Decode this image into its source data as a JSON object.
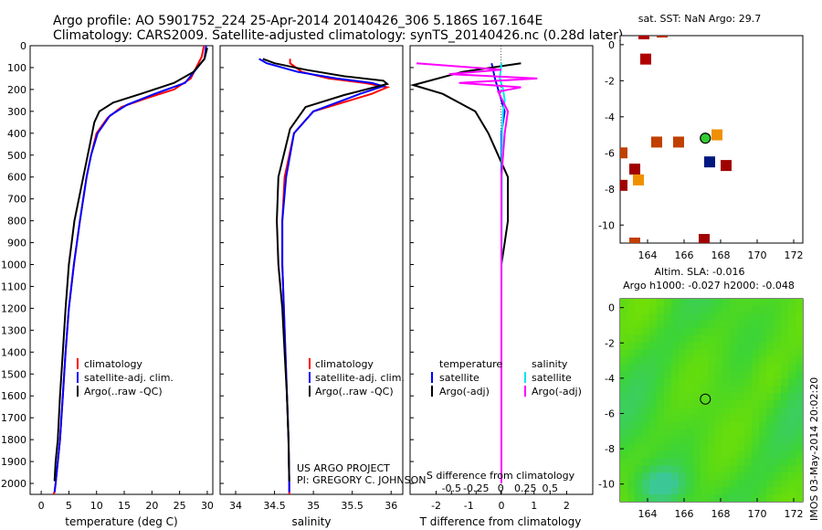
{
  "header": {
    "line1": "Argo profile: AO 5901752_224 25-Apr-2014 20140426_306 5.186S 167.164E",
    "line2": "Climatology: CARS2009. Satellite-adjusted climatology: synTS_20140426.nc (0.28d later)"
  },
  "depth_ticks": [
    "0",
    "100",
    "200",
    "300",
    "400",
    "500",
    "600",
    "700",
    "800",
    "900",
    "1000",
    "1100",
    "1200",
    "1300",
    "1400",
    "1500",
    "1600",
    "1700",
    "1800",
    "1900",
    "2000"
  ],
  "colors": {
    "climatology": "#ff0000",
    "satellite": "#0000ff",
    "argo": "#000000",
    "sat_sal": "#00e5ee",
    "argo_sal": "#ff00ff",
    "sea": "#33cc33"
  },
  "panels": {
    "temperature": {
      "xlabel": "temperature (deg C)",
      "xticks": [
        "0",
        "5",
        "10",
        "15",
        "20",
        "25",
        "30"
      ],
      "legend": [
        "climatology",
        "satellite-adj. clim.",
        "Argo(..raw -QC)"
      ]
    },
    "salinity": {
      "xlabel": "salinity",
      "xticks": [
        "34",
        "34.5",
        "35",
        "35.5",
        "36"
      ],
      "legend": [
        "climatology",
        "satellite-adj. clim.",
        "Argo(..raw -QC)"
      ],
      "credit1": "US ARGO PROJECT",
      "credit2": "PI: GREGORY C. JOHNSON"
    },
    "difference": {
      "xlabel": "T difference from climatology",
      "top_label": "S difference from climatology",
      "xticks": [
        "-2",
        "-1",
        "0",
        "1",
        "2"
      ],
      "top_ticks": [
        "-0.5",
        "-0.25",
        "0",
        "0.25",
        "0.5"
      ],
      "legend_t_head": "temperature",
      "legend_s_head": "salinity",
      "legend_t": [
        "satellite",
        "Argo(-adj)"
      ],
      "legend_s": [
        "satellite",
        "Argo(-adj)"
      ]
    },
    "sst_map": {
      "title": "sat. SST: NaN Argo: 29.7",
      "xticks": [
        "164",
        "166",
        "168",
        "170",
        "172"
      ],
      "yticks": [
        "0",
        "-2",
        "-4",
        "-6",
        "-8",
        "-10"
      ]
    },
    "sla_map": {
      "title1": "Altim. SLA: -0.016",
      "title2": "Argo h1000: -0.027 h2000: -0.048",
      "xticks": [
        "164",
        "166",
        "168",
        "170",
        "172"
      ],
      "yticks": [
        "0",
        "-2",
        "-4",
        "-6",
        "-8",
        "-10"
      ]
    },
    "timestamp": "IMOS 03-May-2014 20:02:20"
  },
  "chart_data": [
    {
      "type": "line",
      "xlabel": "temperature (deg C)",
      "xlim": [
        -2,
        31
      ],
      "ylim": [
        2050,
        0
      ],
      "series": [
        {
          "name": "climatology",
          "color": "#ff0000",
          "x": [
            29.4,
            29.0,
            27.0,
            24.0,
            19.0,
            14.5,
            12.0,
            10.0,
            9.0,
            8.2,
            7.0,
            5.9,
            5.0,
            4.4,
            3.9,
            3.4,
            3.0,
            2.6,
            2.4,
            2.2
          ],
          "y": [
            0,
            50,
            150,
            200,
            240,
            280,
            330,
            400,
            500,
            600,
            800,
            1000,
            1200,
            1400,
            1600,
            1800,
            1900,
            2000,
            2040,
            2050
          ]
        },
        {
          "name": "satellite-adj. clim.",
          "color": "#0000ff",
          "x": [
            29.8,
            29.5,
            26.0,
            20.5,
            15.5,
            12.4,
            10.2,
            9.0,
            8.2,
            7.0,
            5.9,
            5.0,
            4.4,
            3.9,
            3.4,
            3.0,
            2.6,
            2.4
          ],
          "y": [
            0,
            60,
            170,
            220,
            270,
            320,
            400,
            500,
            600,
            800,
            1000,
            1200,
            1400,
            1600,
            1800,
            1900,
            2000,
            2040
          ]
        },
        {
          "name": "Argo(..raw -QC)",
          "color": "#000000",
          "x": [
            30.0,
            29.5,
            27.5,
            24.0,
            18.0,
            13.0,
            10.5,
            9.6,
            8.8,
            7.6,
            6.0,
            5.0,
            4.4,
            3.9,
            3.4,
            3.0,
            2.6,
            2.4
          ],
          "y": [
            10,
            60,
            120,
            170,
            220,
            260,
            300,
            350,
            450,
            600,
            800,
            1000,
            1200,
            1400,
            1600,
            1800,
            1900,
            1990
          ]
        }
      ]
    },
    {
      "type": "line",
      "xlabel": "salinity",
      "xlim": [
        33.8,
        36.15
      ],
      "ylim": [
        2050,
        0
      ],
      "series": [
        {
          "name": "climatology",
          "color": "#ff0000",
          "x": [
            34.7,
            34.7,
            34.85,
            35.2,
            35.65,
            35.95,
            35.75,
            35.0,
            34.75,
            34.63,
            34.6,
            34.6,
            34.62,
            34.64,
            34.66,
            34.68,
            34.69,
            34.69
          ],
          "y": [
            60,
            80,
            120,
            150,
            170,
            190,
            220,
            300,
            400,
            600,
            800,
            1000,
            1200,
            1400,
            1600,
            1800,
            2000,
            2050
          ]
        },
        {
          "name": "satellite-adj. clim.",
          "color": "#0000ff",
          "x": [
            34.3,
            34.4,
            34.8,
            35.3,
            35.75,
            35.9,
            35.6,
            35.0,
            34.75,
            34.65,
            34.6,
            34.6,
            34.62,
            34.64,
            34.66,
            34.68,
            34.69,
            34.69
          ],
          "y": [
            60,
            80,
            120,
            150,
            170,
            185,
            220,
            300,
            400,
            600,
            800,
            1000,
            1200,
            1400,
            1600,
            1800,
            2000,
            2040
          ]
        },
        {
          "name": "Argo(..raw -QC)",
          "color": "#000000",
          "x": [
            34.35,
            34.5,
            34.9,
            35.4,
            35.9,
            35.95,
            35.4,
            34.9,
            34.7,
            34.55,
            34.53,
            34.55,
            34.6,
            34.63,
            34.66,
            34.68,
            34.69
          ],
          "y": [
            60,
            80,
            110,
            140,
            160,
            175,
            225,
            280,
            380,
            600,
            800,
            1000,
            1200,
            1400,
            1600,
            1800,
            1990
          ]
        }
      ]
    },
    {
      "type": "line",
      "xlabel": "T difference from climatology",
      "title": "S difference from climatology",
      "xlim": [
        -2.8,
        2.8
      ],
      "ylim": [
        2050,
        0
      ],
      "series": [
        {
          "name": "satellite",
          "color": "#0000ff",
          "x": [
            -0.3,
            -0.2,
            0.0,
            0.1,
            0.0,
            0.0,
            0.0,
            0.0,
            0.0
          ],
          "y": [
            80,
            150,
            250,
            300,
            400,
            600,
            800,
            1200,
            2000
          ]
        },
        {
          "name": "Argo(-adj)",
          "color": "#000000",
          "x": [
            0.6,
            -1.2,
            -2.7,
            -1.8,
            -0.8,
            -0.4,
            -0.1,
            0.2,
            0.2,
            0.1,
            0.0,
            0.0,
            0.0,
            0.0
          ],
          "y": [
            80,
            120,
            180,
            220,
            300,
            400,
            500,
            600,
            800,
            900,
            1000,
            1200,
            1600,
            2000
          ]
        },
        {
          "name": "satellite (S)",
          "color": "#00e5ee",
          "x": [
            0.0,
            -0.05,
            0.05,
            0.1,
            0.05,
            0.02,
            0.01,
            0.0,
            0.0
          ],
          "y": [
            80,
            150,
            200,
            250,
            300,
            400,
            600,
            1200,
            2000
          ]
        },
        {
          "name": "Argo(-adj) (S)",
          "color": "#ff00ff",
          "x": [
            -2.6,
            0.0,
            -1.6,
            1.1,
            -1.3,
            0.6,
            -0.1,
            0.2,
            0.1,
            0.0,
            0.0,
            0.0
          ],
          "y": [
            80,
            110,
            130,
            150,
            170,
            190,
            210,
            300,
            400,
            600,
            1000,
            2000
          ]
        }
      ]
    },
    {
      "type": "scatter",
      "title": "sat. SST: NaN Argo: 29.7",
      "xlim": [
        162.5,
        172.5
      ],
      "ylim": [
        -11,
        0.5
      ],
      "markers": [
        {
          "x": 163.8,
          "y": 0.6,
          "color": "#b00000"
        },
        {
          "x": 164.8,
          "y": 0.7,
          "color": "#b03000"
        },
        {
          "x": 163.9,
          "y": -0.8,
          "color": "#b00000"
        },
        {
          "x": 164.5,
          "y": -5.4,
          "color": "#c04000"
        },
        {
          "x": 165.7,
          "y": -5.4,
          "color": "#c04000"
        },
        {
          "x": 167.8,
          "y": -5.0,
          "color": "#f09000"
        },
        {
          "x": 167.4,
          "y": -6.5,
          "color": "#001880"
        },
        {
          "x": 168.3,
          "y": -6.7,
          "color": "#a00000"
        },
        {
          "x": 163.3,
          "y": -6.9,
          "color": "#a00000"
        },
        {
          "x": 163.5,
          "y": -7.5,
          "color": "#f09000"
        },
        {
          "x": 162.6,
          "y": -7.8,
          "color": "#a00000"
        },
        {
          "x": 162.6,
          "y": -6.0,
          "color": "#c04000"
        },
        {
          "x": 167.1,
          "y": -10.8,
          "color": "#a00000"
        },
        {
          "x": 163.3,
          "y": -11.0,
          "color": "#c04000"
        }
      ],
      "argo": {
        "x": 167.164,
        "y": -5.186
      }
    },
    {
      "type": "heatmap",
      "title": "Altim. SLA: -0.016",
      "subtitle": "Argo h1000: -0.027 h2000: -0.048",
      "xlim": [
        162.5,
        172.5
      ],
      "ylim": [
        -11,
        0.5
      ],
      "argo": {
        "x": 167.164,
        "y": -5.186
      }
    }
  ]
}
